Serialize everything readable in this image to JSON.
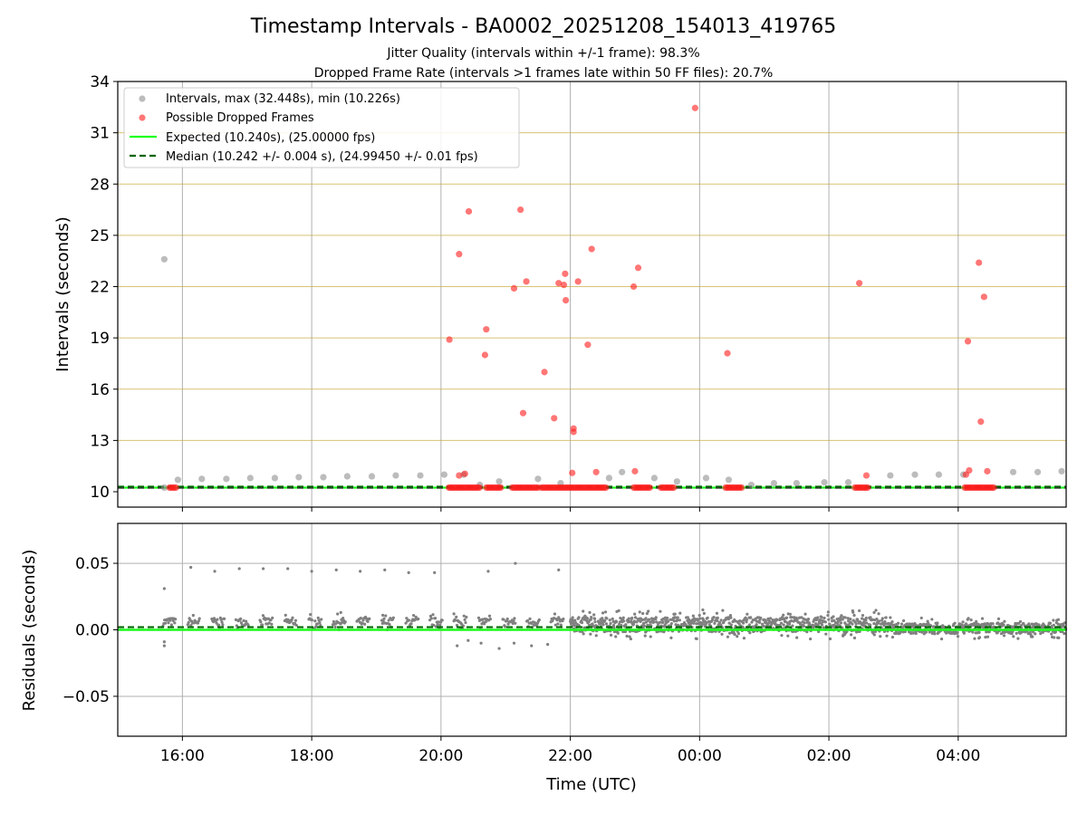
{
  "chart_data": [
    {
      "type": "scatter",
      "panel": "intervals",
      "title": "Timestamp Intervals - BA0002_20251208_154013_419765",
      "subtitle_1": "Jitter Quality (intervals within +/-1 frame): 98.3%",
      "subtitle_2": "Dropped Frame Rate (intervals >1 frames late within 50 FF files): 20.7%",
      "ylabel": "Intervals (seconds)",
      "xlabel": "",
      "xlim_hours": [
        15.0,
        29.67
      ],
      "ylim": [
        9.1,
        34
      ],
      "yticks": [
        "10",
        "13",
        "16",
        "19",
        "22",
        "25",
        "28",
        "31",
        "34"
      ],
      "ytick_values": [
        10,
        13,
        16,
        19,
        22,
        25,
        28,
        31,
        34
      ],
      "xticks": [
        "16:00",
        "18:00",
        "20:00",
        "22:00",
        "00:00",
        "02:00",
        "04:00"
      ],
      "xtick_hours": [
        16,
        18,
        20,
        22,
        24,
        26,
        28
      ],
      "legend": {
        "placement": "upper-left",
        "intervals": "Intervals, max (32.448s), min (10.226s)",
        "dropped": "Possible Dropped Frames",
        "expected": "Expected (10.240s), (25.00000 fps)",
        "median": "Median (10.242 +/- 0.004 s), (24.99450 +/- 0.01 fps)"
      },
      "expected_value": 10.24,
      "median_value": 10.242,
      "grey_points": [
        [
          15.72,
          23.6
        ],
        [
          15.72,
          10.24
        ],
        [
          15.93,
          10.7
        ],
        [
          16.3,
          10.75
        ],
        [
          16.68,
          10.75
        ],
        [
          17.05,
          10.8
        ],
        [
          17.43,
          10.8
        ],
        [
          17.8,
          10.85
        ],
        [
          18.18,
          10.85
        ],
        [
          18.55,
          10.9
        ],
        [
          18.93,
          10.9
        ],
        [
          19.3,
          10.95
        ],
        [
          19.68,
          10.95
        ],
        [
          20.05,
          11.0
        ],
        [
          20.35,
          11.0
        ],
        [
          20.6,
          10.4
        ],
        [
          20.9,
          10.6
        ],
        [
          21.5,
          10.75
        ],
        [
          21.85,
          10.5
        ],
        [
          22.6,
          10.8
        ],
        [
          22.8,
          11.15
        ],
        [
          23.3,
          10.8
        ],
        [
          23.65,
          10.6
        ],
        [
          24.1,
          10.8
        ],
        [
          24.45,
          10.7
        ],
        [
          24.8,
          10.4
        ],
        [
          25.15,
          10.5
        ],
        [
          25.5,
          10.5
        ],
        [
          25.93,
          10.55
        ],
        [
          26.3,
          10.55
        ],
        [
          26.95,
          10.95
        ],
        [
          27.33,
          11.0
        ],
        [
          27.7,
          11.0
        ],
        [
          28.08,
          11.0
        ],
        [
          28.85,
          11.15
        ],
        [
          29.23,
          11.15
        ],
        [
          29.6,
          11.2
        ]
      ],
      "dropped_points": [
        [
          20.13,
          18.9
        ],
        [
          20.28,
          23.9
        ],
        [
          20.28,
          10.95
        ],
        [
          20.37,
          11.05
        ],
        [
          20.43,
          26.4
        ],
        [
          20.68,
          18.0
        ],
        [
          20.7,
          19.5
        ],
        [
          21.13,
          21.9
        ],
        [
          21.23,
          26.5
        ],
        [
          21.27,
          14.6
        ],
        [
          21.32,
          22.3
        ],
        [
          21.6,
          17.0
        ],
        [
          21.75,
          14.3
        ],
        [
          21.82,
          22.2
        ],
        [
          21.9,
          22.1
        ],
        [
          21.92,
          22.75
        ],
        [
          21.93,
          21.2
        ],
        [
          22.03,
          11.1
        ],
        [
          22.05,
          13.7
        ],
        [
          22.05,
          13.5
        ],
        [
          22.12,
          22.3
        ],
        [
          22.27,
          18.6
        ],
        [
          22.33,
          24.2
        ],
        [
          22.4,
          11.15
        ],
        [
          22.98,
          22.0
        ],
        [
          23.0,
          11.2
        ],
        [
          23.05,
          23.1
        ],
        [
          23.93,
          32.45
        ],
        [
          24.43,
          18.1
        ],
        [
          26.47,
          22.2
        ],
        [
          26.58,
          10.95
        ],
        [
          28.12,
          11.0
        ],
        [
          28.15,
          18.8
        ],
        [
          28.17,
          11.25
        ],
        [
          28.32,
          23.4
        ],
        [
          28.35,
          14.1
        ],
        [
          28.4,
          21.4
        ],
        [
          28.45,
          11.2
        ]
      ],
      "dropped_baseline_ranges": [
        [
          15.8,
          15.92
        ],
        [
          20.12,
          20.6
        ],
        [
          20.7,
          20.93
        ],
        [
          21.1,
          21.5
        ],
        [
          21.55,
          22.55
        ],
        [
          22.98,
          23.25
        ],
        [
          23.4,
          23.6
        ],
        [
          24.4,
          24.65
        ],
        [
          26.4,
          26.6
        ],
        [
          28.1,
          28.55
        ]
      ]
    },
    {
      "type": "scatter",
      "panel": "residuals",
      "ylabel": "Residuals (seconds)",
      "xlabel": "Time (UTC)",
      "xlim_hours": [
        15.0,
        29.67
      ],
      "ylim": [
        -0.08,
        0.08
      ],
      "yticks": [
        "−0.05",
        "0.00",
        "0.05"
      ],
      "ytick_values": [
        -0.05,
        0,
        0.05
      ],
      "xticks": [
        "16:00",
        "18:00",
        "20:00",
        "22:00",
        "00:00",
        "02:00",
        "04:00"
      ],
      "xtick_hours": [
        16,
        18,
        20,
        22,
        24,
        26,
        28
      ],
      "expected_value": 0.0,
      "median_value": 0.002,
      "outlier_points": [
        [
          15.72,
          0.031
        ],
        [
          15.72,
          -0.012
        ],
        [
          15.72,
          -0.009
        ],
        [
          16.13,
          0.047
        ],
        [
          16.5,
          0.044
        ],
        [
          16.88,
          0.046
        ],
        [
          17.25,
          0.046
        ],
        [
          17.63,
          0.046
        ],
        [
          18.0,
          0.044
        ],
        [
          18.38,
          0.045
        ],
        [
          18.75,
          0.044
        ],
        [
          19.13,
          0.045
        ],
        [
          19.5,
          0.043
        ],
        [
          19.9,
          0.043
        ],
        [
          20.73,
          0.044
        ],
        [
          21.15,
          0.05
        ],
        [
          21.82,
          0.045
        ],
        [
          20.25,
          -0.012
        ],
        [
          20.42,
          -0.008
        ],
        [
          20.62,
          -0.01
        ],
        [
          20.9,
          -0.014
        ],
        [
          21.13,
          -0.01
        ],
        [
          21.4,
          -0.012
        ],
        [
          21.65,
          -0.011
        ],
        [
          18.45,
          0.013
        ],
        [
          19.1,
          0.011
        ],
        [
          20.2,
          0.012
        ],
        [
          22.3,
          0.013
        ],
        [
          24.05,
          0.015
        ],
        [
          26.7,
          0.013
        ]
      ],
      "dense_band_segments": [
        {
          "from": 15.7,
          "to": 22.0,
          "center": 0.006,
          "spread": 0.006
        },
        {
          "from": 22.0,
          "to": 27.0,
          "center": 0.004,
          "spread": 0.011
        },
        {
          "from": 27.0,
          "to": 29.67,
          "center": 0.001,
          "spread": 0.008
        }
      ]
    }
  ]
}
